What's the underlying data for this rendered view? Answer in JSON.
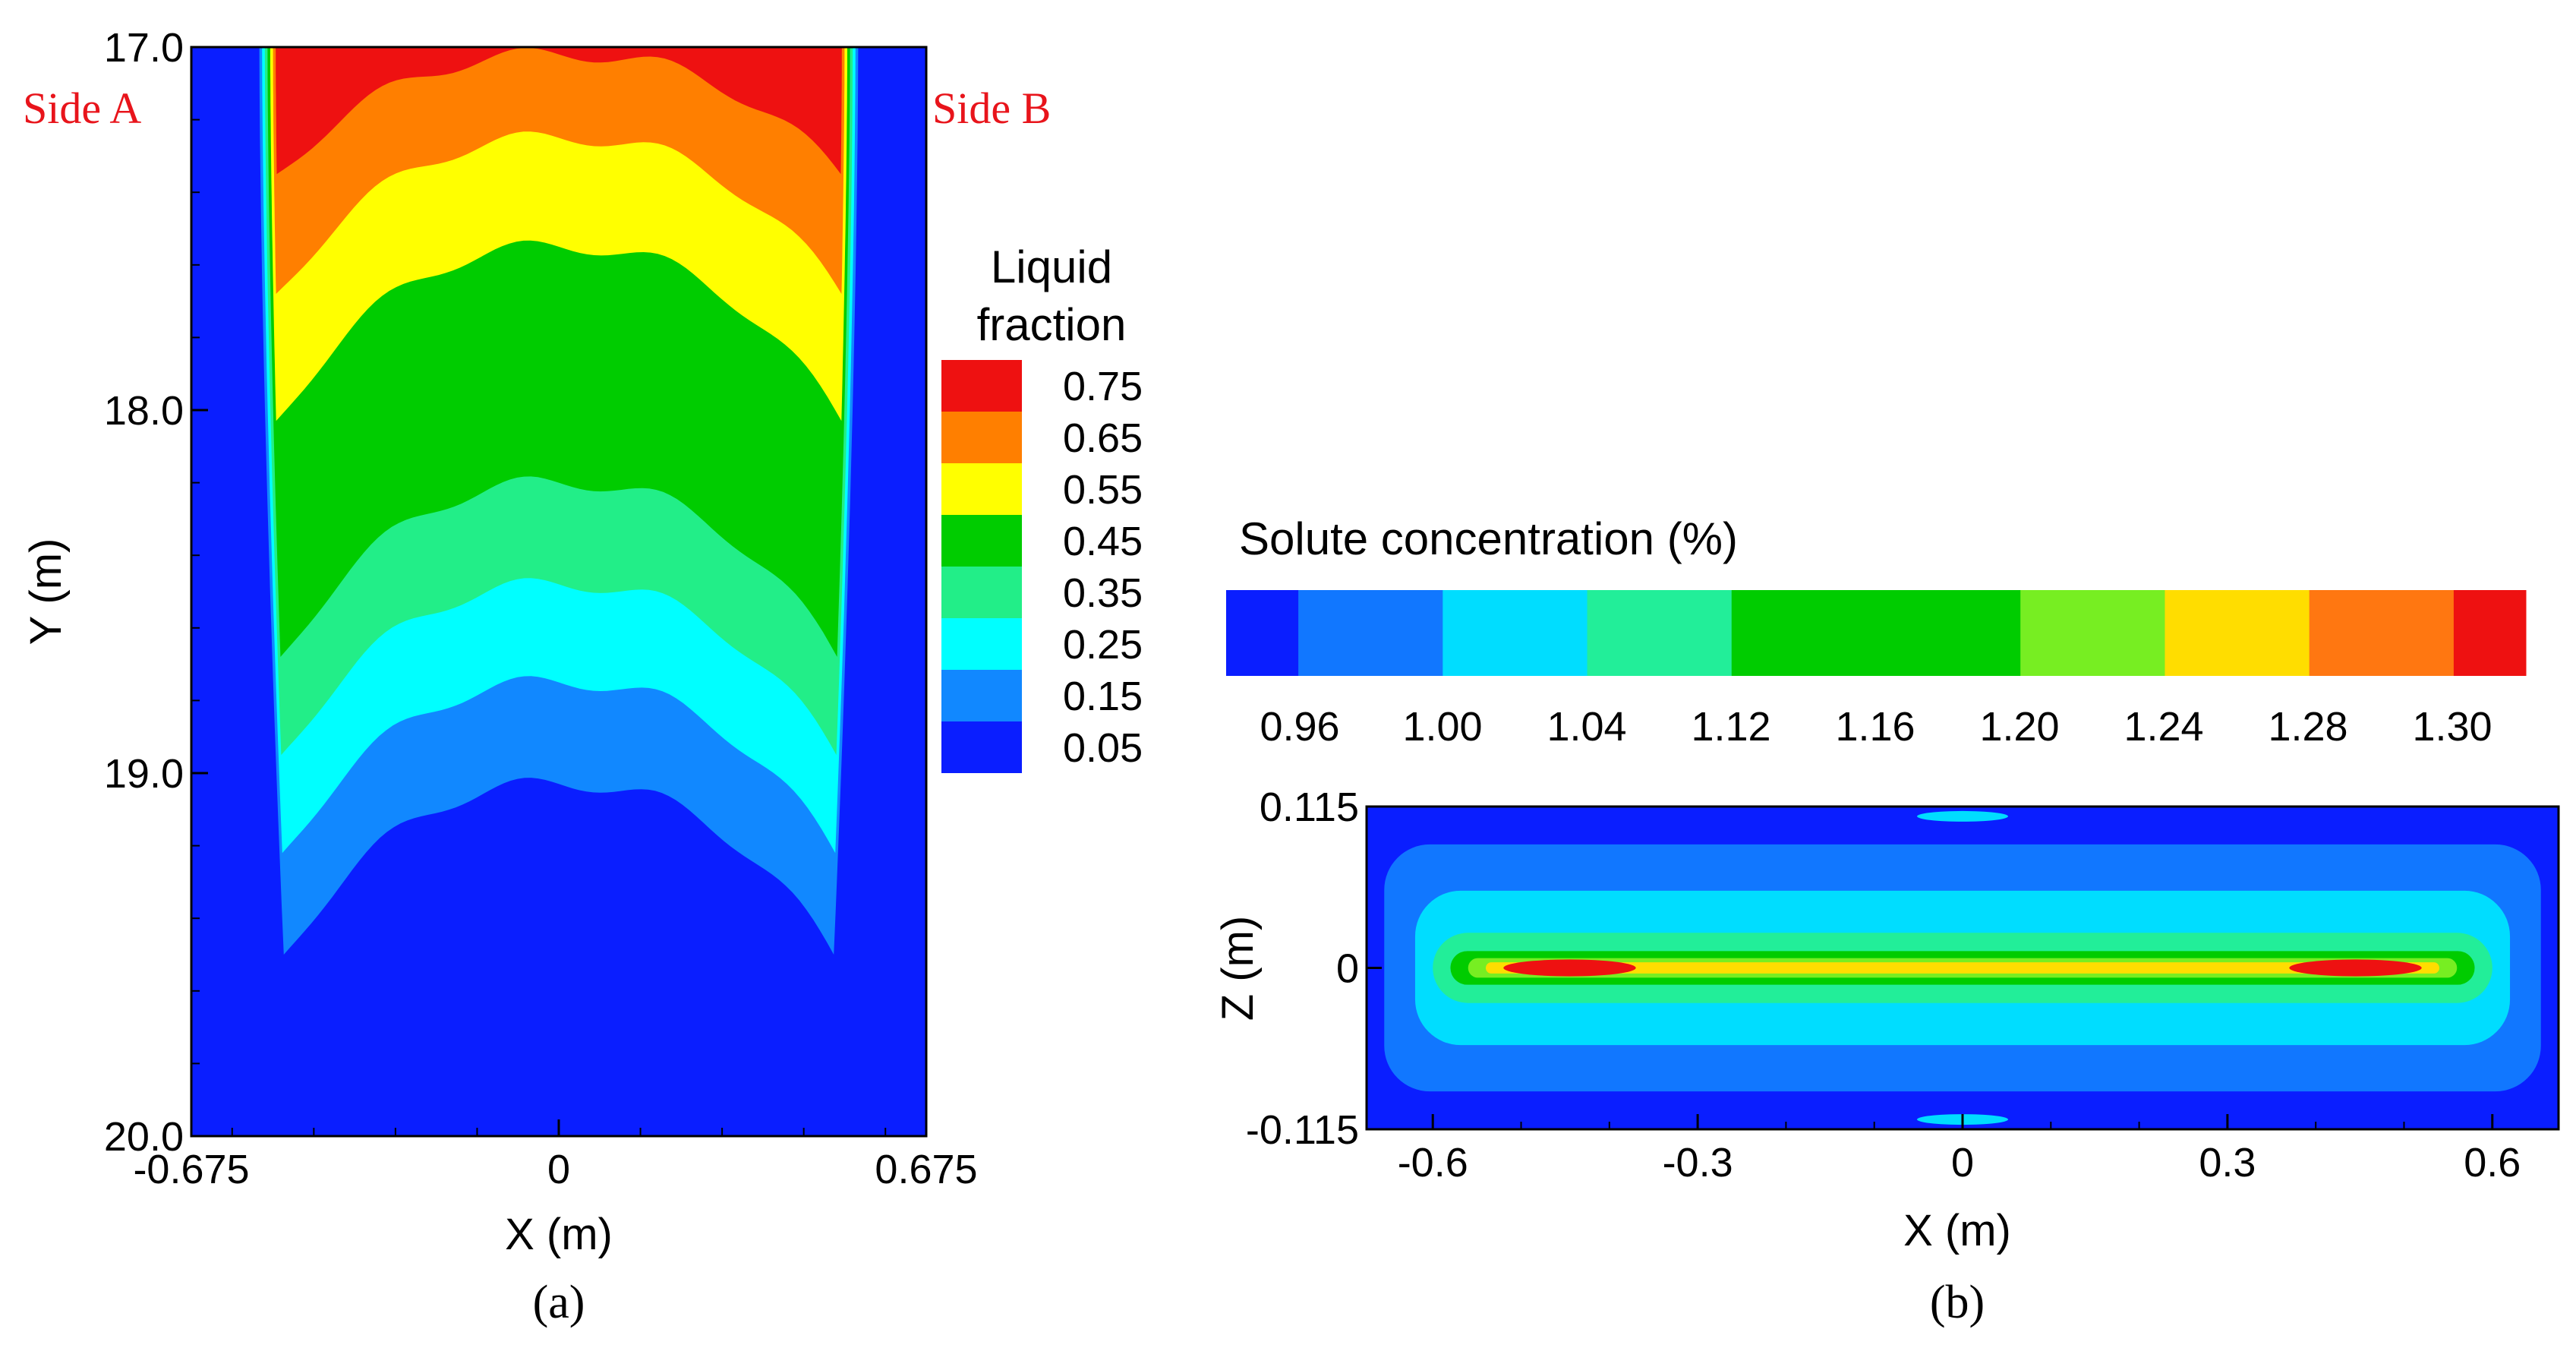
{
  "chart_data": [
    {
      "type": "heatmap",
      "panel_label": "(a)",
      "title": "",
      "xlabel": "X  (m)",
      "ylabel": "Y  (m)",
      "xlim": [
        -0.675,
        0.675
      ],
      "ylim": [
        20.0,
        17.0
      ],
      "x_ticks": [
        "-0.675",
        "0",
        "0.675"
      ],
      "y_ticks": [
        "17.0",
        "18.0",
        "19.0",
        "20.0"
      ],
      "annotations": [
        "Side A",
        "Side B"
      ],
      "legend": {
        "title": "Liquid fraction",
        "title_lines": [
          "Liquid",
          "fraction"
        ],
        "placement": "right",
        "levels": [
          "0.75",
          "0.65",
          "0.55",
          "0.45",
          "0.35",
          "0.25",
          "0.15",
          "0.05"
        ],
        "colors": [
          "#ee1111",
          "#ff7f00",
          "#ffff00",
          "#00cc00",
          "#22ee88",
          "#00ffff",
          "#1188ff",
          "#0a1eff"
        ]
      },
      "background_color": "#0a1eff",
      "bands": [
        {
          "level": 0.15,
          "color": "#1188ff",
          "bottom_edge_y": 19.5,
          "bottom_center_y": 19.03
        },
        {
          "level": 0.25,
          "color": "#00ffff",
          "bottom_edge_y": 19.22,
          "bottom_center_y": 18.75
        },
        {
          "level": 0.35,
          "color": "#22ee88",
          "bottom_edge_y": 18.95,
          "bottom_center_y": 18.48
        },
        {
          "level": 0.45,
          "color": "#00cc00",
          "bottom_edge_y": 18.68,
          "bottom_center_y": 18.2
        },
        {
          "level": 0.55,
          "color": "#ffff00",
          "bottom_edge_y": 18.03,
          "bottom_center_y": 17.55
        },
        {
          "level": 0.65,
          "color": "#ff7f00",
          "bottom_edge_y": 17.68,
          "bottom_center_y": 17.25
        },
        {
          "level": 0.75,
          "color": "#ee1111",
          "bottom_edge_y": 17.35,
          "bottom_center_y": 17.02
        }
      ]
    },
    {
      "type": "heatmap",
      "panel_label": "(b)",
      "title": "",
      "xlabel": "X  (m)",
      "ylabel": "Z  (m)",
      "xlim": [
        -0.675,
        0.675
      ],
      "ylim": [
        -0.115,
        0.115
      ],
      "x_ticks": [
        "-0.6",
        "-0.3",
        "0",
        "0.3",
        "0.6"
      ],
      "y_ticks": [
        "0.115",
        "0",
        "-0.115"
      ],
      "legend": {
        "title": "Solute concentration (%)",
        "placement": "top",
        "levels": [
          "0.96",
          "1.00",
          "1.04",
          "1.12",
          "1.16",
          "1.20",
          "1.24",
          "1.28",
          "1.30"
        ],
        "colors": [
          "#0a1eff",
          "#1177ff",
          "#00ddff",
          "#22ee99",
          "#00cc00",
          "#77ee22",
          "#ffdd00",
          "#ff7711",
          "#ee1111"
        ],
        "widths": [
          1,
          2,
          2,
          2,
          4,
          2,
          2,
          2,
          1
        ]
      },
      "background_color": "#0a1eff",
      "bands": [
        {
          "level": 1.0,
          "color": "#1177ff",
          "half_width_x": 0.655,
          "half_height_z": 0.088
        },
        {
          "level": 1.04,
          "color": "#00ddff",
          "half_width_x": 0.62,
          "half_height_z": 0.055
        },
        {
          "level": 1.12,
          "color": "#22ee99",
          "half_width_x": 0.6,
          "half_height_z": 0.025
        },
        {
          "level": 1.16,
          "color": "#00cc00",
          "half_width_x": 0.58,
          "half_height_z": 0.012
        },
        {
          "level": 1.2,
          "color": "#77ee22",
          "half_width_x": 0.56,
          "half_height_z": 0.007
        },
        {
          "level": 1.24,
          "color": "#ffdd00",
          "half_width_x": 0.54,
          "half_height_z": 0.004
        }
      ],
      "hotspots": [
        {
          "x": -0.445,
          "z": 0.0,
          "half_width_x": 0.075,
          "half_height_z": 0.006,
          "color": "#ee1111"
        },
        {
          "x": 0.445,
          "z": 0.0,
          "half_width_x": 0.075,
          "half_height_z": 0.006,
          "color": "#ee1111"
        }
      ]
    }
  ]
}
